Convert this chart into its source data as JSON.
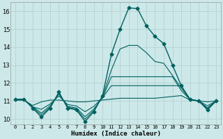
{
  "xlabel": "Humidex (Indice chaleur)",
  "xlim": [
    -0.5,
    23.5
  ],
  "ylim": [
    9.7,
    16.5
  ],
  "yticks": [
    10,
    11,
    12,
    13,
    14,
    15,
    16
  ],
  "xticks": [
    0,
    1,
    2,
    3,
    4,
    5,
    6,
    7,
    8,
    9,
    10,
    11,
    12,
    13,
    14,
    15,
    16,
    17,
    18,
    19,
    20,
    21,
    22,
    23
  ],
  "bg_color": "#cce8e8",
  "grid_color": "#b8d4d4",
  "line_color": "#006060",
  "lines": [
    {
      "x": [
        0,
        1,
        2,
        3,
        4,
        5,
        6,
        7,
        8,
        9,
        10,
        11,
        12,
        13,
        14,
        15,
        16,
        17,
        18,
        19,
        20,
        21,
        22,
        23
      ],
      "y": [
        11.1,
        11.1,
        10.6,
        10.1,
        10.6,
        11.5,
        10.6,
        10.5,
        9.85,
        10.4,
        11.3,
        13.6,
        15.0,
        16.2,
        16.15,
        15.2,
        14.6,
        14.2,
        13.0,
        11.85,
        11.1,
        11.0,
        10.5,
        11.0
      ],
      "marker": "D",
      "markersize": 2.5,
      "linewidth": 1.0
    },
    {
      "x": [
        0,
        1,
        2,
        3,
        4,
        5,
        6,
        7,
        8,
        9,
        10,
        11,
        12,
        13,
        14,
        15,
        16,
        17,
        18,
        19,
        20,
        21,
        22,
        23
      ],
      "y": [
        11.05,
        11.05,
        10.75,
        10.95,
        11.05,
        11.05,
        11.0,
        10.95,
        10.95,
        11.0,
        11.05,
        11.1,
        11.15,
        11.15,
        11.15,
        11.15,
        11.15,
        11.2,
        11.25,
        11.3,
        11.05,
        11.0,
        10.95,
        11.0
      ],
      "marker": null,
      "markersize": 0,
      "linewidth": 0.8
    },
    {
      "x": [
        0,
        1,
        2,
        3,
        4,
        5,
        6,
        7,
        8,
        9,
        10,
        11,
        12,
        13,
        14,
        15,
        16,
        17,
        18,
        19,
        20,
        21,
        22,
        23
      ],
      "y": [
        11.05,
        11.05,
        10.67,
        10.53,
        10.83,
        11.28,
        10.8,
        10.72,
        10.4,
        10.7,
        11.18,
        11.85,
        11.85,
        11.85,
        11.85,
        11.85,
        11.85,
        11.85,
        11.85,
        11.85,
        11.05,
        11.0,
        10.73,
        11.0
      ],
      "marker": null,
      "markersize": 0,
      "linewidth": 0.8
    },
    {
      "x": [
        0,
        1,
        2,
        3,
        4,
        5,
        6,
        7,
        8,
        9,
        10,
        11,
        12,
        13,
        14,
        15,
        16,
        17,
        18,
        19,
        20,
        21,
        22,
        23
      ],
      "y": [
        11.08,
        11.08,
        10.68,
        10.32,
        10.73,
        11.39,
        10.7,
        10.61,
        10.12,
        10.55,
        11.18,
        12.35,
        12.35,
        12.35,
        12.35,
        12.35,
        12.35,
        12.35,
        12.35,
        11.58,
        11.08,
        11.0,
        10.62,
        11.0
      ],
      "marker": null,
      "markersize": 0,
      "linewidth": 0.8
    },
    {
      "x": [
        0,
        1,
        2,
        3,
        4,
        5,
        6,
        7,
        8,
        9,
        10,
        11,
        12,
        13,
        14,
        15,
        16,
        17,
        18,
        19,
        20,
        21,
        22,
        23
      ],
      "y": [
        11.09,
        11.09,
        10.63,
        10.22,
        10.65,
        11.44,
        10.65,
        10.55,
        9.98,
        10.47,
        11.23,
        12.72,
        13.9,
        14.1,
        14.1,
        13.7,
        13.2,
        13.1,
        12.42,
        11.72,
        11.09,
        11.0,
        10.56,
        11.0
      ],
      "marker": null,
      "markersize": 0,
      "linewidth": 0.8
    }
  ]
}
